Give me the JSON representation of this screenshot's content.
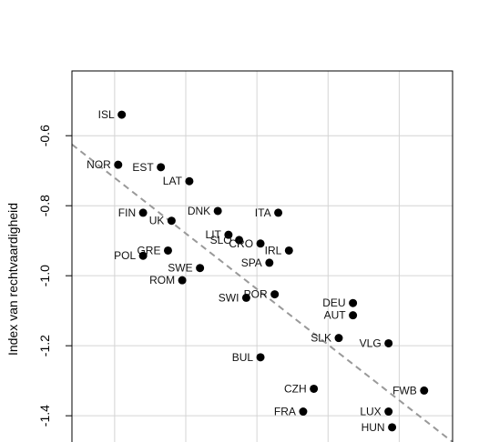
{
  "chart_data": {
    "type": "scatter",
    "title": "",
    "xlabel": "",
    "ylabel": "Index van rechtvaardigheid",
    "xlim": [
      -0.12,
      0.95
    ],
    "ylim": [
      -1.475,
      -0.415
    ],
    "yticks": [
      -1.4,
      -1.2,
      -1.0,
      -0.8,
      -0.6
    ],
    "ytick_labels": [
      "-1.4",
      "-1.2",
      "-1.0",
      "-0.8",
      "-0.6"
    ],
    "xgrid": [
      0.0,
      0.2,
      0.4,
      0.6,
      0.8
    ],
    "grid": true,
    "trendline": {
      "style": "dashed",
      "color": "#999999",
      "x": [
        -0.12,
        0.95
      ],
      "y": [
        -0.625,
        -1.475
      ]
    },
    "point_color": "#000000",
    "points": [
      {
        "label": "ISL",
        "x": 0.02,
        "y": -0.54,
        "pos": "left"
      },
      {
        "label": "NOR",
        "x": 0.01,
        "y": -0.683,
        "pos": "left"
      },
      {
        "label": "EST",
        "x": 0.13,
        "y": -0.69,
        "pos": "left"
      },
      {
        "label": "LAT",
        "x": 0.21,
        "y": -0.73,
        "pos": "left"
      },
      {
        "label": "DNK",
        "x": 0.29,
        "y": -0.815,
        "pos": "left"
      },
      {
        "label": "ITA",
        "x": 0.46,
        "y": -0.82,
        "pos": "left"
      },
      {
        "label": "FIN",
        "x": 0.08,
        "y": -0.82,
        "pos": "left"
      },
      {
        "label": "UK",
        "x": 0.16,
        "y": -0.843,
        "pos": "left"
      },
      {
        "label": "LIT",
        "x": 0.32,
        "y": -0.883,
        "pos": "left"
      },
      {
        "label": "SLO",
        "x": 0.35,
        "y": -0.898,
        "pos": "left"
      },
      {
        "label": "CRO",
        "x": 0.41,
        "y": -0.908,
        "pos": "left"
      },
      {
        "label": "IRL",
        "x": 0.49,
        "y": -0.928,
        "pos": "left"
      },
      {
        "label": "GRE",
        "x": 0.15,
        "y": -0.928,
        "pos": "left"
      },
      {
        "label": "POL",
        "x": 0.08,
        "y": -0.943,
        "pos": "left"
      },
      {
        "label": "SPA",
        "x": 0.435,
        "y": -0.963,
        "pos": "left"
      },
      {
        "label": "SWE",
        "x": 0.24,
        "y": -0.978,
        "pos": "left"
      },
      {
        "label": "ROM",
        "x": 0.19,
        "y": -1.013,
        "pos": "left"
      },
      {
        "label": "POR",
        "x": 0.45,
        "y": -1.053,
        "pos": "left"
      },
      {
        "label": "SWI",
        "x": 0.37,
        "y": -1.063,
        "pos": "left"
      },
      {
        "label": "DEU",
        "x": 0.67,
        "y": -1.078,
        "pos": "left"
      },
      {
        "label": "AUT",
        "x": 0.67,
        "y": -1.113,
        "pos": "left"
      },
      {
        "label": "SLK",
        "x": 0.63,
        "y": -1.178,
        "pos": "left"
      },
      {
        "label": "VLG",
        "x": 0.77,
        "y": -1.193,
        "pos": "left"
      },
      {
        "label": "BUL",
        "x": 0.41,
        "y": -1.233,
        "pos": "left"
      },
      {
        "label": "CZH",
        "x": 0.56,
        "y": -1.323,
        "pos": "left"
      },
      {
        "label": "FWB",
        "x": 0.87,
        "y": -1.328,
        "pos": "left"
      },
      {
        "label": "FRA",
        "x": 0.53,
        "y": -1.388,
        "pos": "left"
      },
      {
        "label": "LUX",
        "x": 0.77,
        "y": -1.388,
        "pos": "left"
      },
      {
        "label": "HUN",
        "x": 0.78,
        "y": -1.433,
        "pos": "left"
      }
    ]
  }
}
